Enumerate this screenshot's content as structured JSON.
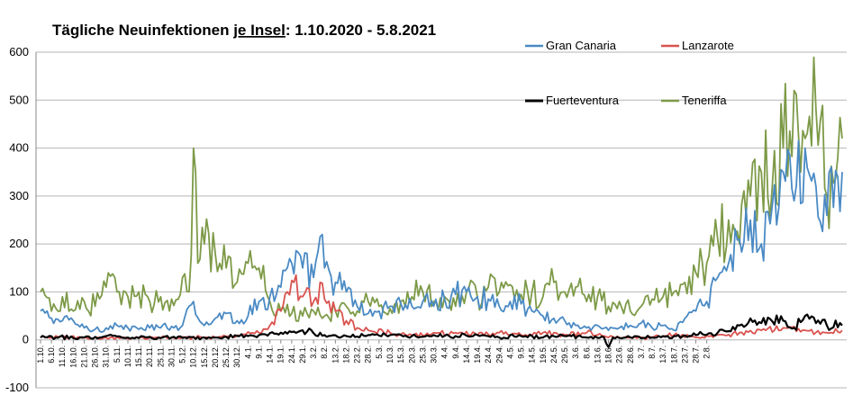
{
  "chart_data": {
    "type": "line",
    "title_prefix": "Tägliche Neuinfektionen ",
    "title_underlined": "je Insel",
    "title_suffix": ": 1.10.2020 - 5.8.2021",
    "ylim": [
      -100,
      600
    ],
    "yticks": [
      "-100",
      "0",
      "100",
      "200",
      "300",
      "400",
      "500",
      "600"
    ],
    "ytick_values": [
      -100,
      0,
      100,
      200,
      300,
      400,
      500,
      600
    ],
    "grid": true,
    "legend_placement": "top-right",
    "x_tick_labels": [
      "1.10.",
      "6.10.",
      "11.10.",
      "16.10.",
      "21.10.",
      "26.10.",
      "31.10.",
      "5.11.",
      "10.11.",
      "15.11.",
      "20.11.",
      "25.11.",
      "30.11.",
      "5.12.",
      "10.12.",
      "15.12.",
      "20.12.",
      "25.12.",
      "30.12.",
      "4.1.",
      "9.1.",
      "14.1.",
      "19.1.",
      "24.1.",
      "29.1.",
      "3.2.",
      "8.2.",
      "13.2.",
      "18.2.",
      "23.2.",
      "28.2.",
      "5.3.",
      "10.3.",
      "15.3.",
      "20.3.",
      "25.3.",
      "30.3.",
      "4.4.",
      "9.4.",
      "14.4.",
      "19.4.",
      "24.4.",
      "29.4.",
      "4.5.",
      "9.5.",
      "14.5.",
      "19.5.",
      "24.5.",
      "29.5.",
      "3.6.",
      "8.6.",
      "13.6.",
      "18.6.",
      "23.6.",
      "28.6.",
      "3.7.",
      "8.7.",
      "13.7.",
      "18.7.",
      "23.7.",
      "28.7.",
      "2.8."
    ],
    "series": [
      {
        "name": "Gran Canaria",
        "color": "#4a8ac4",
        "anchors": [
          [
            0,
            60
          ],
          [
            5,
            45
          ],
          [
            10,
            40
          ],
          [
            15,
            40
          ],
          [
            20,
            25
          ],
          [
            25,
            22
          ],
          [
            30,
            25
          ],
          [
            35,
            30
          ],
          [
            40,
            25
          ],
          [
            45,
            22
          ],
          [
            50,
            25
          ],
          [
            55,
            25
          ],
          [
            60,
            28
          ],
          [
            65,
            30
          ],
          [
            68,
            70
          ],
          [
            70,
            80
          ],
          [
            75,
            30
          ],
          [
            80,
            45
          ],
          [
            85,
            55
          ],
          [
            90,
            40
          ],
          [
            95,
            50
          ],
          [
            100,
            80
          ],
          [
            105,
            90
          ],
          [
            110,
            110
          ],
          [
            113,
            150
          ],
          [
            115,
            160
          ],
          [
            120,
            150
          ],
          [
            125,
            130
          ],
          [
            128,
            215
          ],
          [
            130,
            150
          ],
          [
            135,
            120
          ],
          [
            140,
            100
          ],
          [
            145,
            70
          ],
          [
            150,
            55
          ],
          [
            155,
            60
          ],
          [
            160,
            70
          ],
          [
            165,
            75
          ],
          [
            170,
            70
          ],
          [
            175,
            80
          ],
          [
            180,
            70
          ],
          [
            185,
            85
          ],
          [
            190,
            95
          ],
          [
            195,
            100
          ],
          [
            200,
            90
          ],
          [
            205,
            85
          ],
          [
            210,
            70
          ],
          [
            215,
            80
          ],
          [
            220,
            75
          ],
          [
            225,
            60
          ],
          [
            230,
            50
          ],
          [
            235,
            45
          ],
          [
            240,
            40
          ],
          [
            245,
            30
          ],
          [
            250,
            25
          ],
          [
            255,
            30
          ],
          [
            260,
            20
          ],
          [
            265,
            25
          ],
          [
            270,
            30
          ],
          [
            275,
            35
          ],
          [
            280,
            25
          ],
          [
            285,
            30
          ],
          [
            290,
            20
          ],
          [
            295,
            45
          ],
          [
            300,
            60
          ],
          [
            305,
            80
          ],
          [
            310,
            130
          ],
          [
            315,
            160
          ],
          [
            320,
            210
          ],
          [
            325,
            250
          ],
          [
            330,
            200
          ],
          [
            335,
            280
          ],
          [
            340,
            350
          ],
          [
            345,
            290
          ],
          [
            350,
            400
          ],
          [
            355,
            320
          ],
          [
            360,
            260
          ],
          [
            365,
            340
          ],
          [
            367,
            350
          ]
        ]
      },
      {
        "name": "Lanzarote",
        "color": "#d9534f",
        "anchors": [
          [
            0,
            5
          ],
          [
            20,
            5
          ],
          [
            40,
            3
          ],
          [
            60,
            5
          ],
          [
            80,
            5
          ],
          [
            100,
            15
          ],
          [
            105,
            30
          ],
          [
            110,
            60
          ],
          [
            113,
            100
          ],
          [
            116,
            120
          ],
          [
            120,
            90
          ],
          [
            125,
            80
          ],
          [
            128,
            120
          ],
          [
            130,
            85
          ],
          [
            135,
            60
          ],
          [
            140,
            40
          ],
          [
            145,
            25
          ],
          [
            150,
            20
          ],
          [
            160,
            15
          ],
          [
            170,
            10
          ],
          [
            180,
            15
          ],
          [
            190,
            15
          ],
          [
            200,
            10
          ],
          [
            210,
            15
          ],
          [
            220,
            10
          ],
          [
            230,
            15
          ],
          [
            240,
            10
          ],
          [
            250,
            15
          ],
          [
            260,
            5
          ],
          [
            270,
            5
          ],
          [
            280,
            5
          ],
          [
            290,
            10
          ],
          [
            300,
            5
          ],
          [
            310,
            10
          ],
          [
            320,
            15
          ],
          [
            330,
            20
          ],
          [
            340,
            25
          ],
          [
            350,
            20
          ],
          [
            360,
            15
          ],
          [
            367,
            20
          ]
        ]
      },
      {
        "name": "Fuerteventura",
        "color": "#000000",
        "anchors": [
          [
            0,
            5
          ],
          [
            20,
            5
          ],
          [
            30,
            8
          ],
          [
            40,
            5
          ],
          [
            60,
            5
          ],
          [
            80,
            5
          ],
          [
            100,
            10
          ],
          [
            110,
            15
          ],
          [
            120,
            20
          ],
          [
            130,
            10
          ],
          [
            140,
            8
          ],
          [
            150,
            10
          ],
          [
            160,
            10
          ],
          [
            170,
            8
          ],
          [
            180,
            10
          ],
          [
            190,
            8
          ],
          [
            200,
            10
          ],
          [
            210,
            5
          ],
          [
            220,
            8
          ],
          [
            230,
            5
          ],
          [
            240,
            8
          ],
          [
            250,
            5
          ],
          [
            258,
            5
          ],
          [
            260,
            -15
          ],
          [
            262,
            5
          ],
          [
            270,
            5
          ],
          [
            280,
            5
          ],
          [
            290,
            8
          ],
          [
            300,
            10
          ],
          [
            310,
            15
          ],
          [
            320,
            30
          ],
          [
            330,
            35
          ],
          [
            340,
            40
          ],
          [
            345,
            25
          ],
          [
            350,
            50
          ],
          [
            355,
            35
          ],
          [
            360,
            30
          ],
          [
            367,
            30
          ]
        ]
      },
      {
        "name": "Teneriffa",
        "color": "#7d9a47",
        "anchors": [
          [
            0,
            100
          ],
          [
            5,
            60
          ],
          [
            10,
            90
          ],
          [
            15,
            60
          ],
          [
            20,
            80
          ],
          [
            25,
            70
          ],
          [
            30,
            110
          ],
          [
            35,
            100
          ],
          [
            40,
            90
          ],
          [
            45,
            100
          ],
          [
            50,
            80
          ],
          [
            55,
            90
          ],
          [
            60,
            85
          ],
          [
            65,
            130
          ],
          [
            68,
            100
          ],
          [
            70,
            400
          ],
          [
            72,
            160
          ],
          [
            75,
            200
          ],
          [
            80,
            180
          ],
          [
            85,
            150
          ],
          [
            90,
            120
          ],
          [
            95,
            160
          ],
          [
            100,
            150
          ],
          [
            105,
            80
          ],
          [
            110,
            60
          ],
          [
            115,
            55
          ],
          [
            120,
            50
          ],
          [
            125,
            60
          ],
          [
            130,
            50
          ],
          [
            135,
            60
          ],
          [
            140,
            70
          ],
          [
            145,
            60
          ],
          [
            150,
            80
          ],
          [
            155,
            70
          ],
          [
            160,
            65
          ],
          [
            165,
            80
          ],
          [
            170,
            90
          ],
          [
            175,
            100
          ],
          [
            180,
            80
          ],
          [
            185,
            90
          ],
          [
            190,
            70
          ],
          [
            195,
            100
          ],
          [
            200,
            90
          ],
          [
            205,
            110
          ],
          [
            210,
            100
          ],
          [
            215,
            115
          ],
          [
            220,
            95
          ],
          [
            225,
            100
          ],
          [
            230,
            90
          ],
          [
            235,
            120
          ],
          [
            240,
            100
          ],
          [
            245,
            110
          ],
          [
            250,
            80
          ],
          [
            255,
            90
          ],
          [
            260,
            70
          ],
          [
            265,
            80
          ],
          [
            270,
            60
          ],
          [
            275,
            70
          ],
          [
            280,
            85
          ],
          [
            285,
            90
          ],
          [
            290,
            100
          ],
          [
            295,
            120
          ],
          [
            300,
            140
          ],
          [
            305,
            160
          ],
          [
            310,
            210
          ],
          [
            315,
            250
          ],
          [
            320,
            200
          ],
          [
            325,
            300
          ],
          [
            330,
            350
          ],
          [
            335,
            320
          ],
          [
            340,
            400
          ],
          [
            345,
            520
          ],
          [
            348,
            350
          ],
          [
            350,
            420
          ],
          [
            355,
            480
          ],
          [
            360,
            300
          ],
          [
            365,
            380
          ],
          [
            367,
            420
          ]
        ]
      }
    ]
  }
}
